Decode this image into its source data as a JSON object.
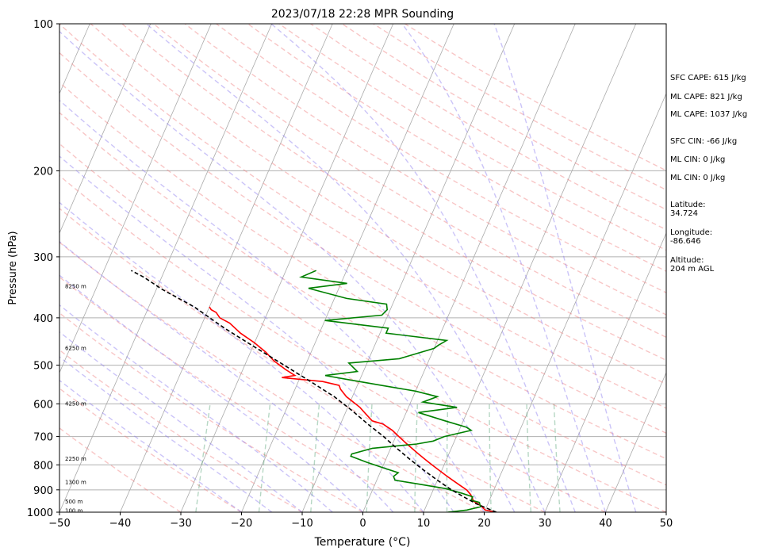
{
  "chart_data": {
    "type": "line",
    "title": "2023/07/18 22:28 MPR Sounding",
    "xlabel": "Temperature (°C)",
    "ylabel": "Pressure (hPa)",
    "xlim": [
      -50,
      50
    ],
    "ylim": [
      1000,
      100
    ],
    "yscale": "log",
    "skew_t": true,
    "grid": true,
    "x_ticks": [
      "−50",
      "−40",
      "−30",
      "−20",
      "−10",
      "0",
      "10",
      "20",
      "30",
      "40",
      "50"
    ],
    "y_ticks": [
      "100",
      "200",
      "300",
      "400",
      "500",
      "600",
      "700",
      "800",
      "900",
      "1000"
    ],
    "height_labels": [
      {
        "label": "100 m",
        "p": 995
      },
      {
        "label": "500 m",
        "p": 952
      },
      {
        "label": "1300 m",
        "p": 870
      },
      {
        "label": "2250 m",
        "p": 778
      },
      {
        "label": "4250 m",
        "p": 600
      },
      {
        "label": "6250 m",
        "p": 462
      },
      {
        "label": "8250 m",
        "p": 345
      }
    ],
    "series": [
      {
        "color": "#ff0000",
        "points": [
          [
            1000,
            22
          ],
          [
            990,
            20
          ],
          [
            970,
            19
          ],
          [
            950,
            17.5
          ],
          [
            920,
            16.5
          ],
          [
            900,
            15.5
          ],
          [
            880,
            14
          ],
          [
            860,
            12.5
          ],
          [
            840,
            11
          ],
          [
            820,
            9.5
          ],
          [
            800,
            8
          ],
          [
            780,
            6.5
          ],
          [
            760,
            5
          ],
          [
            740,
            3.5
          ],
          [
            720,
            2
          ],
          [
            700,
            0.5
          ],
          [
            680,
            -1
          ],
          [
            660,
            -3
          ],
          [
            650,
            -5
          ],
          [
            630,
            -6.5
          ],
          [
            610,
            -8
          ],
          [
            600,
            -9
          ],
          [
            580,
            -11
          ],
          [
            560,
            -12.5
          ],
          [
            550,
            -13
          ],
          [
            540,
            -16
          ],
          [
            530,
            -23
          ],
          [
            525,
            -21
          ],
          [
            510,
            -23
          ],
          [
            490,
            -25.5
          ],
          [
            470,
            -27.5
          ],
          [
            450,
            -30
          ],
          [
            430,
            -33
          ],
          [
            410,
            -35.5
          ],
          [
            400,
            -37.5
          ],
          [
            390,
            -38.5
          ],
          [
            385,
            -39.5
          ],
          [
            380,
            -40
          ]
        ]
      },
      {
        "color": "#008000",
        "points": [
          [
            1000,
            14
          ],
          [
            990,
            17
          ],
          [
            975,
            19
          ],
          [
            955,
            18.5
          ],
          [
            945,
            17
          ],
          [
            930,
            17
          ],
          [
            915,
            15
          ],
          [
            895,
            12
          ],
          [
            875,
            7
          ],
          [
            860,
            3
          ],
          [
            845,
            2.5
          ],
          [
            830,
            3
          ],
          [
            810,
            0
          ],
          [
            790,
            -3
          ],
          [
            768,
            -6
          ],
          [
            760,
            -6
          ],
          [
            740,
            -3
          ],
          [
            725,
            4
          ],
          [
            715,
            6.5
          ],
          [
            700,
            8
          ],
          [
            680,
            12
          ],
          [
            670,
            11
          ],
          [
            650,
            7
          ],
          [
            625,
            2
          ],
          [
            610,
            8
          ],
          [
            595,
            2
          ],
          [
            580,
            4
          ],
          [
            565,
            0
          ],
          [
            550,
            -6
          ],
          [
            535,
            -12
          ],
          [
            525,
            -16
          ],
          [
            515,
            -11
          ],
          [
            495,
            -13
          ],
          [
            485,
            -5
          ],
          [
            462,
            0
          ],
          [
            455,
            0.5
          ],
          [
            445,
            1.5
          ],
          [
            430,
            -9
          ],
          [
            420,
            -9
          ],
          [
            405,
            -20
          ],
          [
            395,
            -11
          ],
          [
            385,
            -10.5
          ],
          [
            375,
            -11
          ],
          [
            365,
            -18
          ],
          [
            348,
            -25
          ],
          [
            340,
            -19
          ],
          [
            330,
            -27
          ],
          [
            320,
            -25
          ]
        ]
      },
      {
        "color": "#000000",
        "dashed": true,
        "points": [
          [
            1000,
            22
          ],
          [
            990,
            21
          ],
          [
            960,
            18
          ],
          [
            930,
            15.5
          ],
          [
            900,
            13
          ],
          [
            860,
            10
          ],
          [
            820,
            7
          ],
          [
            780,
            4
          ],
          [
            740,
            1
          ],
          [
            700,
            -2
          ],
          [
            660,
            -5.5
          ],
          [
            620,
            -9
          ],
          [
            580,
            -13
          ],
          [
            540,
            -18
          ],
          [
            500,
            -23.5
          ],
          [
            460,
            -29.5
          ],
          [
            420,
            -36
          ],
          [
            380,
            -42.5
          ],
          [
            350,
            -49
          ],
          [
            330,
            -53
          ],
          [
            320,
            -55.5
          ]
        ]
      }
    ]
  },
  "sidebar": {
    "sfc_cape": "SFC CAPE: 615 J/kg",
    "ml_cape_1": "ML CAPE: 821 J/kg",
    "ml_cape_2": "ML CAPE: 1037 J/kg",
    "sfc_cin": "SFC CIN: -66 J/kg",
    "ml_cin_1": "ML CIN: 0 J/kg",
    "ml_cin_2": "ML CIN: 0 J/kg",
    "latitude_label": "Latitude:",
    "latitude_value": "34.724",
    "longitude_label": "Longitude:",
    "longitude_value": "-86.646",
    "altitude_label": "Altitude:",
    "altitude_value": "204 m AGL"
  }
}
